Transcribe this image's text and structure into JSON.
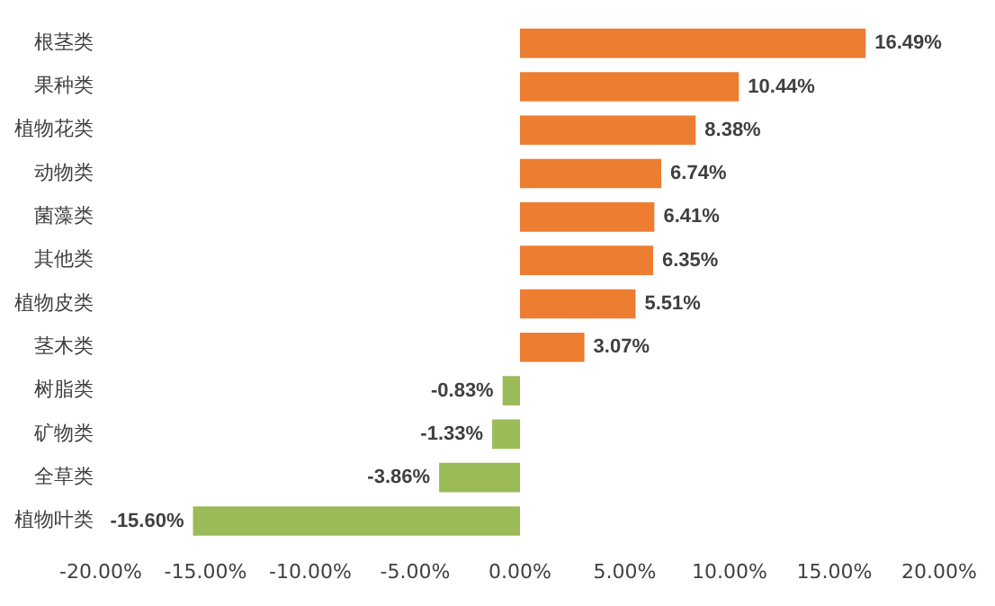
{
  "chart_data": {
    "type": "bar",
    "orientation": "horizontal",
    "categories": [
      "根茎类",
      "果种类",
      "植物花类",
      "动物类",
      "菌藻类",
      "其他类",
      "植物皮类",
      "茎木类",
      "树脂类",
      "矿物类",
      "全草类",
      "植物叶类"
    ],
    "values": [
      16.49,
      10.44,
      8.38,
      6.74,
      6.41,
      6.35,
      5.51,
      3.07,
      -0.83,
      -1.33,
      -3.86,
      -15.6
    ],
    "colors": [
      "#ed7d31",
      "#ed7d31",
      "#ed7d31",
      "#ed7d31",
      "#ed7d31",
      "#ed7d31",
      "#ed7d31",
      "#ed7d31",
      "#9bbb59",
      "#9bbb59",
      "#9bbb59",
      "#9bbb59"
    ],
    "value_labels": [
      "16.49%",
      "10.44%",
      "8.38%",
      "6.74%",
      "6.41%",
      "6.35%",
      "5.51%",
      "3.07%",
      "-0.83%",
      "-1.33%",
      "-3.86%",
      "-15.60%"
    ],
    "xlim": [
      -20,
      20
    ],
    "xticks": [
      {
        "value": -20,
        "label": "-20.00%"
      },
      {
        "value": -15,
        "label": "-15.00%"
      },
      {
        "value": -10,
        "label": "-10.00%"
      },
      {
        "value": -5,
        "label": "-5.00%"
      },
      {
        "value": 0,
        "label": "0.00%"
      },
      {
        "value": 5,
        "label": "5.00%"
      },
      {
        "value": 10,
        "label": "10.00%"
      },
      {
        "value": 15,
        "label": "15.00%"
      },
      {
        "value": 20,
        "label": "20.00%"
      }
    ],
    "grid": false,
    "legend": false
  }
}
